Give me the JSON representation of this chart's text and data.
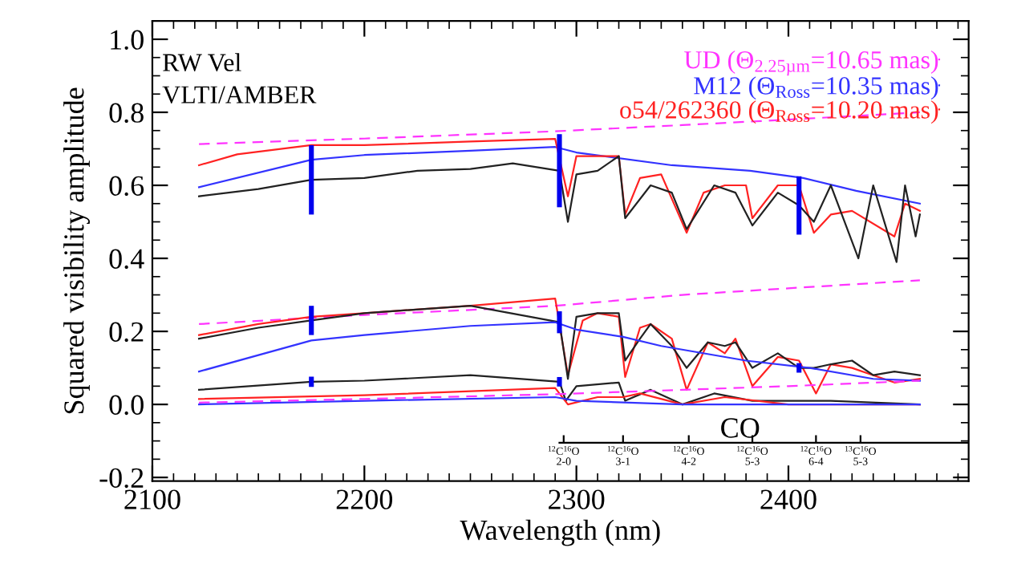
{
  "chart_data": {
    "type": "line",
    "xlabel": "Wavelength (nm)",
    "ylabel": "Squared visibility amplitude",
    "xlim": [
      2100,
      2485
    ],
    "ylim": [
      -0.21,
      1.05
    ],
    "xticks": [
      2100,
      2200,
      2300,
      2400
    ],
    "yticks": [
      -0.2,
      {
        "value": 0,
        "label": "0.0"
      },
      0.2,
      0.4,
      0.6,
      0.8,
      {
        "value": 1,
        "label": "1.0"
      }
    ],
    "ref_lines": [
      {
        "axis": "x",
        "value": 2294,
        "label": "$^{12}$C$^{16}$O\n2-0"
      },
      {
        "axis": "x",
        "value": 2322,
        "label": "$^{12}$C$^{16}$O\n3-1"
      },
      {
        "axis": "x",
        "value": 2353,
        "label": "$^{12}$C$^{16}$O\n4-2"
      },
      {
        "axis": "x",
        "value": 2383,
        "label": "$^{12}$C$^{16}$O\n5-3"
      },
      {
        "axis": "x",
        "value": 2413,
        "label": "$^{12}$C$^{16}$O\n6-4"
      },
      {
        "axis": "x",
        "value": 2434,
        "label": "$^{13}$C$^{16}$O\n5-3"
      }
    ],
    "grid": false,
    "legend": "top right",
    "marker": "none",
    "annotations": [
      "RW Vel\nVLTI/AMBER",
      "CO"
    ],
    "series": [
      {
        "name": "UD (Θ$_{2.25µm}$=10.65 mas)",
        "color": "#ff33ff",
        "line_style": "dashed",
        "x": [
          2122,
          2200,
          2290,
          2350,
          2400,
          2462
        ],
        "values": [
          0.713,
          0.728,
          0.748,
          0.765,
          0.78,
          0.8
        ]
      },
      {
        "name": "M12 (Θ$_{Ross}$=10.35 mas)",
        "color": "#3333ff",
        "line_style": "solid",
        "x": [
          2122,
          2175,
          2200,
          2250,
          2290,
          2300,
          2345,
          2382,
          2407,
          2432,
          2462
        ],
        "values": [
          0.595,
          0.67,
          0.683,
          0.695,
          0.705,
          0.69,
          0.655,
          0.64,
          0.62,
          0.585,
          0.55
        ]
      },
      {
        "name": "o54/262360 (Θ$_{Ross}$=10.20 mas)",
        "color": "#ff2222",
        "line_style": "solid",
        "x": [
          2122,
          2140,
          2175,
          2200,
          2250,
          2290,
          2296,
          2300,
          2310,
          2320,
          2323,
          2330,
          2340,
          2352,
          2360,
          2370,
          2380,
          2383,
          2395,
          2405,
          2412,
          2420,
          2430,
          2450,
          2455,
          2462
        ],
        "values": [
          0.655,
          0.685,
          0.71,
          0.71,
          0.72,
          0.727,
          0.57,
          0.68,
          0.68,
          0.68,
          0.52,
          0.62,
          0.63,
          0.47,
          0.58,
          0.6,
          0.6,
          0.51,
          0.6,
          0.6,
          0.47,
          0.52,
          0.53,
          0.46,
          0.55,
          0.53
        ]
      },
      {
        "color": "#222222",
        "line_style": "solid",
        "x": [
          2122,
          2150,
          2175,
          2200,
          2225,
          2250,
          2270,
          2292,
          2296,
          2300,
          2310,
          2320,
          2323,
          2335,
          2345,
          2352,
          2365,
          2375,
          2383,
          2395,
          2405,
          2412,
          2420,
          2433,
          2440,
          2451,
          2455,
          2460,
          2462
        ],
        "values": [
          0.57,
          0.59,
          0.615,
          0.62,
          0.64,
          0.645,
          0.66,
          0.64,
          0.5,
          0.63,
          0.64,
          0.68,
          0.51,
          0.6,
          0.58,
          0.48,
          0.6,
          0.58,
          0.49,
          0.58,
          0.545,
          0.5,
          0.6,
          0.4,
          0.6,
          0.39,
          0.6,
          0.46,
          0.52
        ],
        "errors": [
          null,
          null,
          0.095,
          null,
          null,
          null,
          null,
          0.1,
          null,
          null,
          null,
          null,
          null,
          null,
          null,
          null,
          null,
          null,
          null,
          null,
          0.08,
          null,
          null,
          null,
          null,
          null,
          null,
          null,
          null
        ]
      },
      {
        "color": "#ff33ff",
        "line_style": "dashed",
        "x": [
          2122,
          2200,
          2290,
          2350,
          2400,
          2462
        ],
        "values": [
          0.22,
          0.245,
          0.27,
          0.3,
          0.318,
          0.34
        ]
      },
      {
        "color": "#ff2222",
        "line_style": "solid",
        "x": [
          2122,
          2150,
          2175,
          2200,
          2250,
          2290,
          2296,
          2303,
          2310,
          2320,
          2323,
          2330,
          2335,
          2345,
          2352,
          2362,
          2370,
          2375,
          2383,
          2395,
          2405,
          2413,
          2420,
          2430,
          2440,
          2450,
          2462
        ],
        "values": [
          0.19,
          0.22,
          0.24,
          0.25,
          0.27,
          0.29,
          0.08,
          0.23,
          0.25,
          0.24,
          0.075,
          0.21,
          0.22,
          0.18,
          0.04,
          0.17,
          0.14,
          0.18,
          0.05,
          0.13,
          0.12,
          0.03,
          0.11,
          0.1,
          0.08,
          0.06,
          0.07
        ]
      },
      {
        "color": "#222222",
        "line_style": "solid",
        "x": [
          2122,
          2150,
          2175,
          2200,
          2250,
          2292,
          2296,
          2300,
          2310,
          2320,
          2323,
          2330,
          2335,
          2345,
          2352,
          2362,
          2370,
          2375,
          2383,
          2395,
          2405,
          2412,
          2420,
          2430,
          2440,
          2450,
          2462
        ],
        "values": [
          0.18,
          0.21,
          0.23,
          0.25,
          0.27,
          0.225,
          0.07,
          0.24,
          0.25,
          0.25,
          0.12,
          0.18,
          0.22,
          0.16,
          0.1,
          0.17,
          0.16,
          0.17,
          0.1,
          0.14,
          0.1,
          0.1,
          0.11,
          0.12,
          0.08,
          0.09,
          0.08
        ],
        "errors": [
          null,
          null,
          0.04,
          null,
          null,
          0.03,
          null,
          null,
          null,
          null,
          null,
          null,
          null,
          null,
          null,
          null,
          null,
          null,
          null,
          null,
          0.013,
          null,
          null,
          null,
          null,
          null,
          null
        ]
      },
      {
        "color": "#3333ff",
        "line_style": "solid",
        "x": [
          2122,
          2175,
          2200,
          2250,
          2290,
          2300,
          2322,
          2340,
          2380,
          2410,
          2440,
          2462
        ],
        "values": [
          0.09,
          0.175,
          0.19,
          0.215,
          0.225,
          0.205,
          0.185,
          0.16,
          0.12,
          0.1,
          0.07,
          0.065
        ]
      },
      {
        "color": "#222222",
        "line_style": "solid",
        "x": [
          2122,
          2175,
          2200,
          2250,
          2292,
          2295,
          2300,
          2320,
          2323,
          2335,
          2350,
          2365,
          2383,
          2400,
          2420,
          2462
        ],
        "values": [
          0.04,
          0.062,
          0.065,
          0.08,
          0.062,
          0.01,
          0.05,
          0.06,
          0.01,
          0.04,
          0.0,
          0.03,
          0.01,
          0.01,
          0.01,
          0.0
        ],
        "errors": [
          null,
          0.014,
          null,
          null,
          0.013,
          null,
          null,
          null,
          null,
          null,
          null,
          null,
          null,
          null,
          null,
          null
        ]
      },
      {
        "color": "#ff2222",
        "line_style": "solid",
        "x": [
          2122,
          2200,
          2290,
          2296,
          2310,
          2322,
          2330,
          2350,
          2370,
          2400,
          2462
        ],
        "values": [
          0.015,
          0.025,
          0.045,
          0.0,
          0.02,
          0.02,
          0.03,
          0.0,
          0.02,
          0.0,
          0.0
        ]
      },
      {
        "color": "#3333ff",
        "line_style": "solid",
        "x": [
          2122,
          2200,
          2290,
          2300,
          2350,
          2462
        ],
        "values": [
          0.0,
          0.01,
          0.02,
          0.01,
          0.0,
          0.0
        ]
      },
      {
        "color": "#ff33ff",
        "line_style": "dashed",
        "x": [
          2122,
          2200,
          2290,
          2350,
          2400,
          2462
        ],
        "values": [
          0.005,
          0.015,
          0.028,
          0.04,
          0.05,
          0.065
        ]
      }
    ]
  }
}
